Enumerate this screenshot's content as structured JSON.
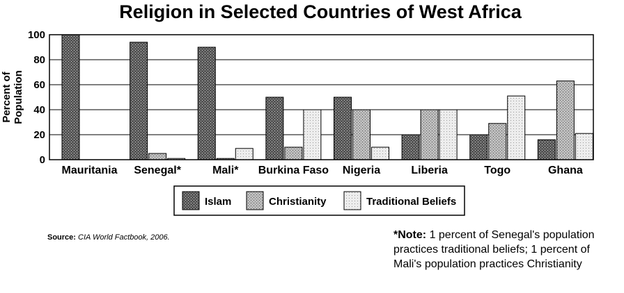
{
  "chart_data": {
    "type": "bar",
    "title": "Religion in Selected Countries of West Africa",
    "ylabel": [
      "Percent of",
      "Population"
    ],
    "ylim": [
      0,
      100
    ],
    "yticks": [
      0,
      20,
      40,
      60,
      80,
      100
    ],
    "grid": true,
    "legend_position": "bottom",
    "categories": [
      "Mauritania",
      "Senegal*",
      "Mali*",
      "Burkina Faso",
      "Nigeria",
      "Liberia",
      "Togo",
      "Ghana"
    ],
    "series": [
      {
        "name": "Islam",
        "values": [
          100,
          94,
          90,
          50,
          50,
          20,
          20,
          16
        ],
        "color": "#5a5a5a"
      },
      {
        "name": "Christianity",
        "values": [
          0,
          5,
          1,
          10,
          40,
          40,
          29,
          63
        ],
        "color": "#a8a8a8"
      },
      {
        "name": "Traditional Beliefs",
        "values": [
          0,
          1,
          9,
          40,
          10,
          40,
          51,
          21
        ],
        "color": "#dcdcdc"
      }
    ]
  },
  "source": {
    "label": "Source:",
    "text": "CIA World Factbook, 2006."
  },
  "note": {
    "label": "*Note:",
    "text": "1 percent of Senegal's population practices traditional beliefs; 1 percent of Mali's population practices Christianity"
  }
}
